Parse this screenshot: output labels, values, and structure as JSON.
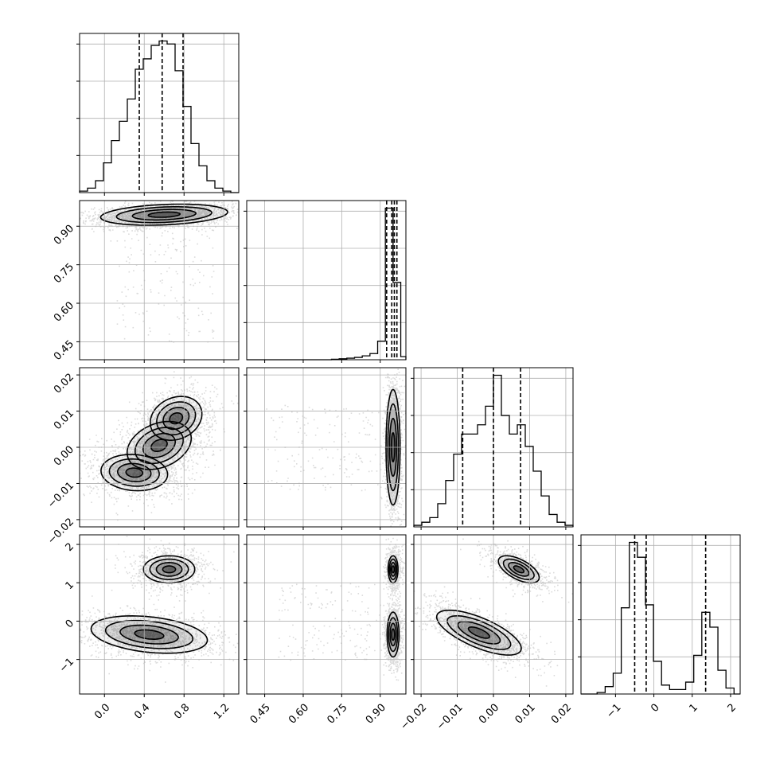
{
  "chart_data": {
    "type": "corner",
    "grid": true,
    "colors": {
      "points": "#000000",
      "lines": "#000000",
      "grid": "#b0b0b0",
      "frame": "#000000"
    },
    "params": [
      {
        "range": [
          -0.25,
          1.35
        ],
        "ticks": [
          0.0,
          0.4,
          0.8,
          1.2
        ],
        "tick_labels": [
          "0.0",
          "0.4",
          "0.8",
          "1.2"
        ]
      },
      {
        "range": [
          0.38,
          1.0
        ],
        "ticks": [
          0.45,
          0.6,
          0.75,
          0.9
        ],
        "tick_labels": [
          "0.45",
          "0.60",
          "0.75",
          "0.90"
        ]
      },
      {
        "range": [
          -0.022,
          0.022
        ],
        "ticks": [
          -0.02,
          -0.01,
          0.0,
          0.01,
          0.02
        ],
        "tick_labels": [
          "−0.02",
          "−0.01",
          "0.00",
          "0.01",
          "0.02"
        ]
      },
      {
        "range": [
          -1.9,
          2.25
        ],
        "ticks": [
          -1,
          0,
          1,
          2
        ],
        "tick_labels": [
          "−1",
          "0",
          "1",
          "2"
        ]
      }
    ],
    "histograms": [
      {
        "param": 0,
        "bin_edges": [
          -0.25,
          -0.17,
          -0.09,
          -0.01,
          0.07,
          0.15,
          0.23,
          0.31,
          0.39,
          0.47,
          0.55,
          0.63,
          0.71,
          0.79,
          0.87,
          0.95,
          1.03,
          1.11,
          1.19,
          1.27,
          1.35
        ],
        "counts": [
          0.01,
          0.03,
          0.08,
          0.2,
          0.35,
          0.48,
          0.63,
          0.83,
          0.9,
          0.99,
          1.02,
          1.0,
          0.82,
          0.58,
          0.33,
          0.18,
          0.08,
          0.03,
          0.01,
          0.0
        ],
        "quantiles": [
          0.35,
          0.58,
          0.79
        ]
      },
      {
        "param": 1,
        "bin_edges": [
          0.38,
          0.41,
          0.44,
          0.47,
          0.5,
          0.53,
          0.56,
          0.59,
          0.62,
          0.65,
          0.68,
          0.71,
          0.74,
          0.77,
          0.8,
          0.83,
          0.86,
          0.89,
          0.92,
          0.95,
          0.98,
          1.0
        ],
        "counts": [
          0.0,
          0.0,
          0.0,
          0.0,
          0.0,
          0.0,
          0.0,
          0.0,
          0.0,
          0.0,
          0.0,
          0.003,
          0.006,
          0.01,
          0.015,
          0.025,
          0.04,
          0.12,
          0.98,
          0.5,
          0.02
        ],
        "quantiles": [
          0.925,
          0.945,
          0.955,
          0.965
        ]
      },
      {
        "param": 2,
        "bin_edges": [
          -0.022,
          -0.0198,
          -0.0176,
          -0.0154,
          -0.0132,
          -0.011,
          -0.0088,
          -0.0066,
          -0.0044,
          -0.0022,
          0.0,
          0.0022,
          0.0044,
          0.0066,
          0.0088,
          0.011,
          0.0132,
          0.0154,
          0.0176,
          0.0198,
          0.022
        ],
        "counts": [
          0.01,
          0.03,
          0.06,
          0.15,
          0.3,
          0.47,
          0.6,
          0.6,
          0.66,
          0.78,
          0.98,
          0.72,
          0.6,
          0.66,
          0.52,
          0.36,
          0.2,
          0.08,
          0.03,
          0.01
        ],
        "quantiles": [
          -0.0085,
          0.0,
          0.0075
        ]
      },
      {
        "param": 3,
        "bin_edges": [
          -1.9,
          -1.69,
          -1.48,
          -1.27,
          -1.06,
          -0.85,
          -0.64,
          -0.43,
          -0.22,
          -0.01,
          0.2,
          0.41,
          0.62,
          0.83,
          1.04,
          1.25,
          1.46,
          1.67,
          1.88,
          2.09,
          2.25
        ],
        "counts": [
          0.0,
          0.0,
          0.01,
          0.05,
          0.14,
          0.58,
          1.02,
          0.92,
          0.6,
          0.22,
          0.06,
          0.03,
          0.03,
          0.08,
          0.26,
          0.55,
          0.45,
          0.16,
          0.04,
          0.0
        ],
        "quantiles": [
          -0.5,
          -0.2,
          1.35
        ]
      }
    ],
    "pairs": [
      {
        "x": 0,
        "y": 1,
        "modes": [
          {
            "x": 0.6,
            "y": 0.945,
            "sx": 0.28,
            "sy": 0.018,
            "rho": 0.25,
            "w": 1.0
          }
        ],
        "scatter_tail": {
          "x": [
            0.1,
            1.1
          ],
          "y": [
            0.45,
            0.92
          ]
        }
      },
      {
        "x": 0,
        "y": 2,
        "modes": [
          {
            "x": 0.55,
            "y": 0.0005,
            "sx": 0.17,
            "sy": 0.0035,
            "rho": 0.3,
            "w": 0.6
          },
          {
            "x": 0.72,
            "y": 0.008,
            "sx": 0.15,
            "sy": 0.0035,
            "rho": 0.2,
            "w": 0.45
          },
          {
            "x": 0.3,
            "y": -0.007,
            "sx": 0.2,
            "sy": 0.003,
            "rho": -0.1,
            "w": 0.4
          }
        ]
      },
      {
        "x": 1,
        "y": 2,
        "modes": [
          {
            "x": 0.95,
            "y": 0.0,
            "sx": 0.012,
            "sy": 0.007,
            "rho": 0.0,
            "w": 1.0
          }
        ],
        "scatter_tail": {
          "x": [
            0.45,
            0.93
          ],
          "y": [
            -0.012,
            0.012
          ]
        }
      },
      {
        "x": 0,
        "y": 3,
        "modes": [
          {
            "x": 0.65,
            "y": 1.35,
            "sx": 0.16,
            "sy": 0.22,
            "rho": 0.0,
            "w": 0.35
          },
          {
            "x": 0.45,
            "y": -0.35,
            "sx": 0.3,
            "sy": 0.25,
            "rho": -0.3,
            "w": 0.65
          }
        ]
      },
      {
        "x": 1,
        "y": 3,
        "modes": [
          {
            "x": 0.95,
            "y": 1.35,
            "sx": 0.012,
            "sy": 0.22,
            "rho": 0.0,
            "w": 0.35
          },
          {
            "x": 0.95,
            "y": -0.35,
            "sx": 0.012,
            "sy": 0.3,
            "rho": 0.0,
            "w": 0.65
          }
        ],
        "scatter_tail": {
          "x": [
            0.5,
            0.93
          ],
          "y": [
            -1.0,
            1.0
          ]
        }
      },
      {
        "x": 2,
        "y": 3,
        "modes": [
          {
            "x": 0.007,
            "y": 1.35,
            "sx": 0.0035,
            "sy": 0.22,
            "rho": -0.6,
            "w": 0.35
          },
          {
            "x": -0.004,
            "y": -0.3,
            "sx": 0.006,
            "sy": 0.3,
            "rho": -0.7,
            "w": 0.65
          }
        ]
      }
    ]
  }
}
